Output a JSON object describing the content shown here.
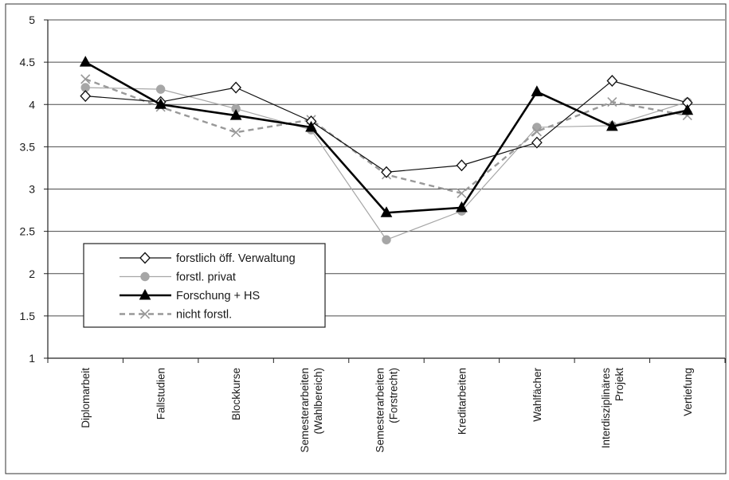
{
  "chart_data": {
    "type": "line",
    "categories": [
      [
        "Diplomarbeit"
      ],
      [
        "Fallstudien"
      ],
      [
        "Blockkurse"
      ],
      [
        "Semesterarbeiten",
        "(Wahlbereich)"
      ],
      [
        "Semesterarbeiten",
        "(Forstrecht)"
      ],
      [
        "Kreditarbeiten"
      ],
      [
        "Wahlfächer"
      ],
      [
        "Interdisziplinäres",
        "Projekt"
      ],
      [
        "Vertiefung"
      ]
    ],
    "yticks": [
      "5",
      "4.5",
      "4",
      "3.5",
      "3",
      "2.5",
      "2",
      "1.5",
      "1"
    ],
    "ylim": [
      1,
      5
    ],
    "grid": true,
    "legend_position": "bottom-left",
    "series": [
      {
        "name": "forstlich öff. Verwaltung",
        "values": [
          4.1,
          4.03,
          4.2,
          3.8,
          3.2,
          3.28,
          3.55,
          4.28,
          4.02
        ],
        "color": "#111111",
        "marker": "diamond",
        "style": "thin-solid"
      },
      {
        "name": "forstl. privat",
        "values": [
          4.2,
          4.18,
          3.95,
          3.7,
          2.4,
          2.74,
          3.73,
          3.75,
          4.03
        ],
        "color": "#a6a6a6",
        "marker": "circle",
        "style": "thin-solid"
      },
      {
        "name": "Forschung + HS",
        "values": [
          4.5,
          4.0,
          3.87,
          3.73,
          2.72,
          2.78,
          4.15,
          3.74,
          3.93
        ],
        "color": "#000000",
        "marker": "triangle",
        "style": "thick-solid"
      },
      {
        "name": "nicht forstl.",
        "values": [
          4.3,
          3.97,
          3.67,
          3.82,
          3.17,
          2.95,
          3.68,
          4.03,
          3.87
        ],
        "color": "#999999",
        "marker": "x",
        "style": "dashed"
      }
    ]
  }
}
